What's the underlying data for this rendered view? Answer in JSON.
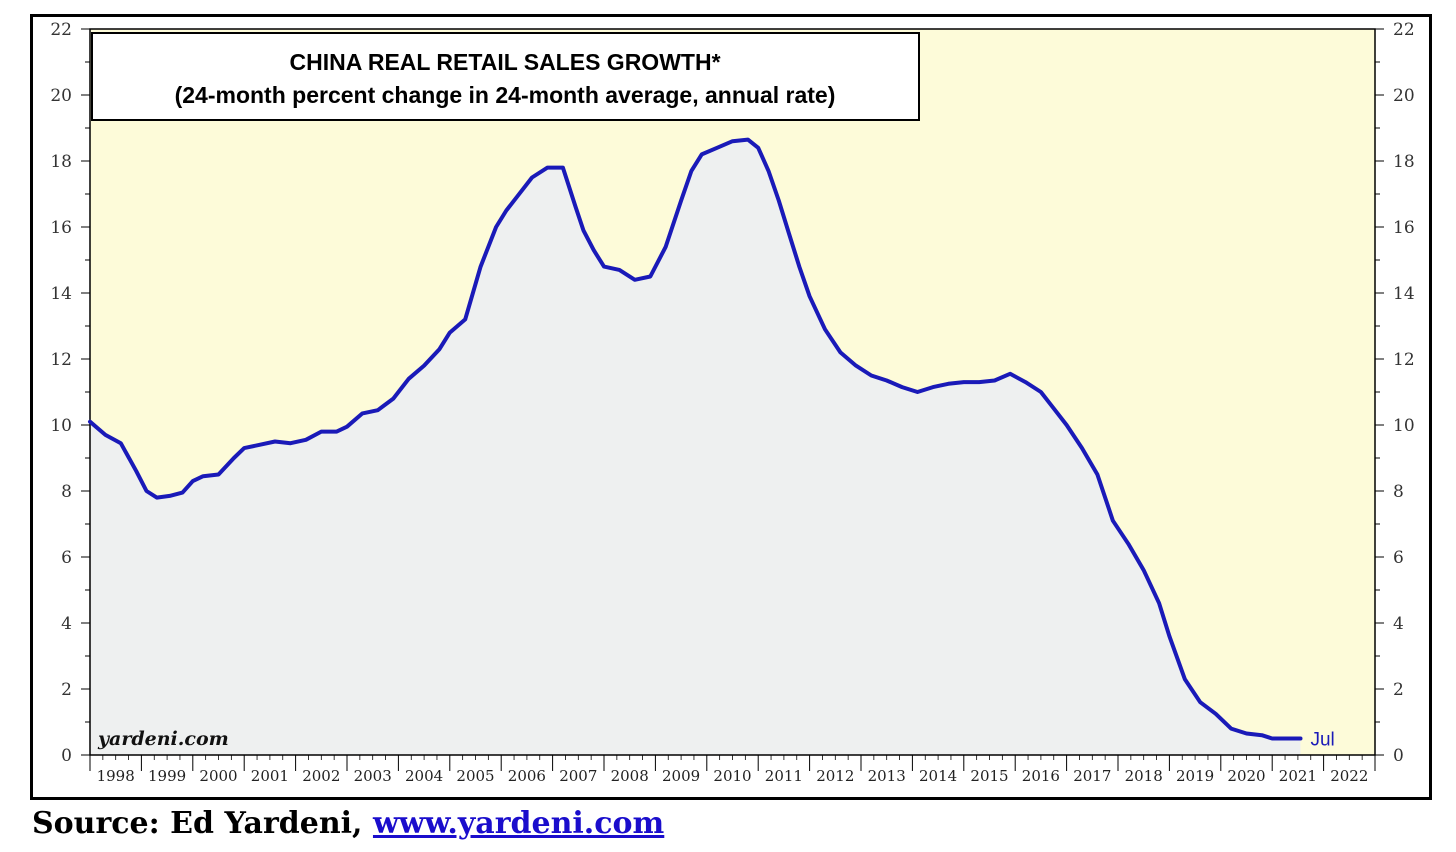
{
  "colors": {
    "plot_background": "#fdfbd9",
    "area_fill": "#eef0f0",
    "series_line": "#1a1ab8",
    "frame": "#000000"
  },
  "source": {
    "prefix": "Source: Ed Yardeni, ",
    "link_text": "www.yardeni.com"
  },
  "chart_data": {
    "type": "area",
    "title": "CHINA REAL RETAIL SALES GROWTH*",
    "subtitle": "(24-month percent change in 24-month average, annual rate)",
    "watermark": "yardeni.com",
    "end_label": "Jul",
    "xlabel": "",
    "ylabel": "",
    "ylim": [
      0,
      22
    ],
    "y_ticks": [
      0,
      2,
      4,
      6,
      8,
      10,
      12,
      14,
      16,
      18,
      20,
      22
    ],
    "y_axis_sides": [
      "left",
      "right"
    ],
    "xlim": [
      1998,
      2023
    ],
    "x_ticks": [
      "1998",
      "1999",
      "2000",
      "2001",
      "2002",
      "2003",
      "2004",
      "2005",
      "2006",
      "2007",
      "2008",
      "2009",
      "2010",
      "2011",
      "2012",
      "2013",
      "2014",
      "2015",
      "2016",
      "2017",
      "2018",
      "2019",
      "2020",
      "2021",
      "2022"
    ],
    "grid": false,
    "series": [
      {
        "x": [
          1998.0,
          1998.3,
          1998.6,
          1998.9,
          1999.1,
          1999.3,
          1999.55,
          1999.8,
          2000.0,
          2000.2,
          2000.5,
          2000.8,
          2001.0,
          2001.3,
          2001.6,
          2001.9,
          2002.2,
          2002.5,
          2002.8,
          2003.0,
          2003.3,
          2003.6,
          2003.9,
          2004.2,
          2004.5,
          2004.8,
          2005.0,
          2005.3,
          2005.6,
          2005.9,
          2006.1,
          2006.3,
          2006.6,
          2006.9,
          2007.2,
          2007.45,
          2007.6,
          2007.8,
          2008.0,
          2008.3,
          2008.6,
          2008.9,
          2009.2,
          2009.5,
          2009.7,
          2009.9,
          2010.2,
          2010.5,
          2010.8,
          2011.0,
          2011.2,
          2011.4,
          2011.6,
          2011.8,
          2012.0,
          2012.3,
          2012.6,
          2012.9,
          2013.2,
          2013.5,
          2013.8,
          2014.1,
          2014.4,
          2014.7,
          2015.0,
          2015.3,
          2015.6,
          2015.9,
          2016.2,
          2016.5,
          2016.7,
          2017.0,
          2017.3,
          2017.6,
          2017.9,
          2018.2,
          2018.5,
          2018.8,
          2019.0,
          2019.3,
          2019.6,
          2019.9,
          2020.0,
          2020.2,
          2020.5,
          2020.8,
          2021.0,
          2021.2,
          2021.4,
          2021.55
        ],
        "values": [
          10.1,
          9.7,
          9.45,
          8.6,
          8.0,
          7.8,
          7.85,
          7.95,
          8.3,
          8.45,
          8.5,
          9.0,
          9.3,
          9.4,
          9.5,
          9.45,
          9.55,
          9.8,
          9.8,
          9.95,
          10.35,
          10.45,
          10.8,
          11.4,
          11.8,
          12.3,
          12.8,
          13.2,
          14.8,
          16.0,
          16.5,
          16.9,
          17.5,
          17.8,
          17.8,
          16.6,
          15.9,
          15.3,
          14.8,
          14.7,
          14.4,
          14.5,
          15.4,
          16.8,
          17.7,
          18.2,
          18.4,
          18.6,
          18.65,
          18.4,
          17.7,
          16.8,
          15.8,
          14.8,
          13.9,
          12.9,
          12.2,
          11.8,
          11.5,
          11.35,
          11.15,
          11.0,
          11.15,
          11.25,
          11.3,
          11.3,
          11.35,
          11.55,
          11.3,
          11.0,
          10.6,
          10.0,
          9.3,
          8.5,
          7.1,
          6.4,
          5.6,
          4.6,
          3.6,
          2.3,
          1.6,
          1.25,
          1.1,
          0.8,
          0.65,
          0.6,
          0.5,
          0.5,
          0.5,
          0.5
        ]
      }
    ]
  }
}
